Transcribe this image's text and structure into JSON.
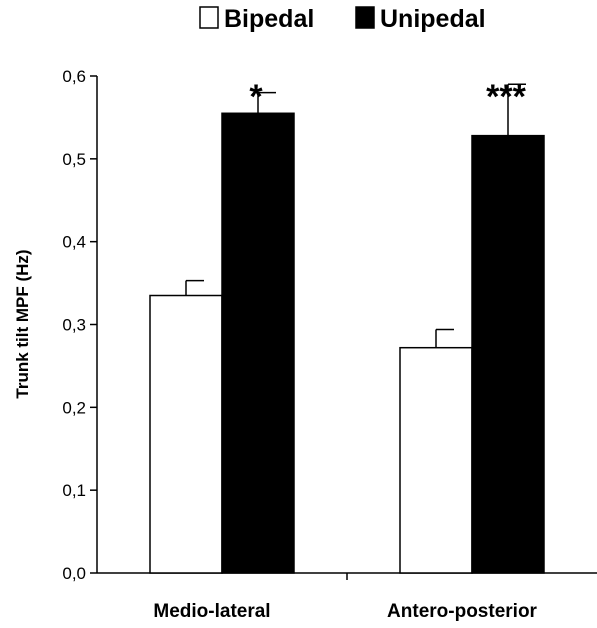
{
  "chart_data": {
    "type": "bar",
    "categories": [
      "Medio-lateral",
      "Antero-posterior"
    ],
    "series": [
      {
        "name": "Bipedal",
        "values": [
          0.335,
          0.272
        ],
        "errors": [
          0.018,
          0.022
        ],
        "color": "#ffffff"
      },
      {
        "name": "Unipedal",
        "values": [
          0.555,
          0.528
        ],
        "errors": [
          0.025,
          0.062
        ],
        "color": "#000000"
      }
    ],
    "significance": [
      "*",
      "***"
    ],
    "ylabel": "Trunk tilt MPF (Hz)",
    "ylim": [
      0,
      0.6
    ],
    "yticks": [
      "0,0",
      "0,1",
      "0,2",
      "0,3",
      "0,4",
      "0,5",
      "0,6"
    ],
    "grid": false,
    "legend_position": "top"
  }
}
